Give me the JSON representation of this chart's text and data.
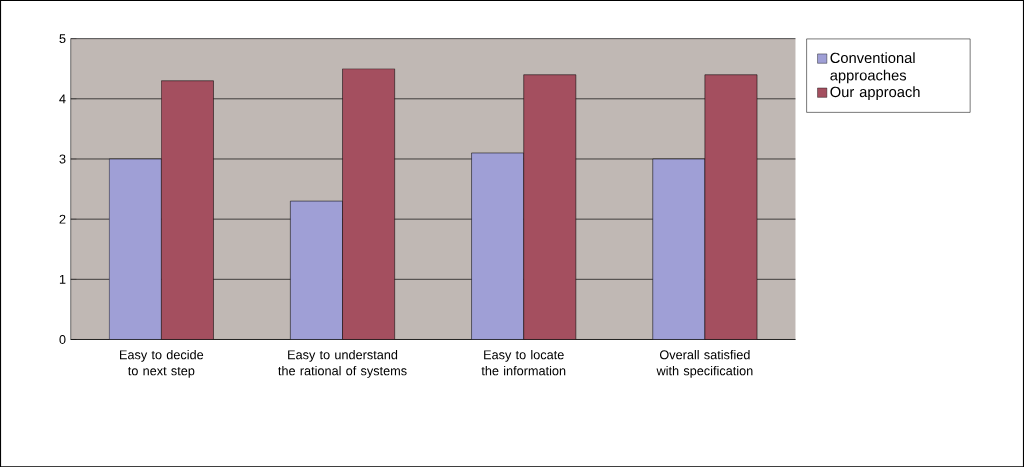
{
  "chart_data": {
    "type": "bar",
    "categories": [
      "Easy to decide to next step",
      "Easy to understand the rational of systems",
      "Easy to locate the information",
      "Overall satisfied with specification"
    ],
    "series": [
      {
        "name": "Conventional approaches",
        "color": "#9f9fd6",
        "values": [
          3.0,
          2.3,
          3.1,
          3.0
        ]
      },
      {
        "name": "Our approach",
        "color": "#a44f5f",
        "values": [
          4.3,
          4.5,
          4.4,
          4.4
        ]
      }
    ],
    "ylim": [
      0,
      5
    ],
    "yticks": [
      0,
      1,
      2,
      3,
      4,
      5
    ],
    "grid": "y",
    "legend": "right"
  }
}
